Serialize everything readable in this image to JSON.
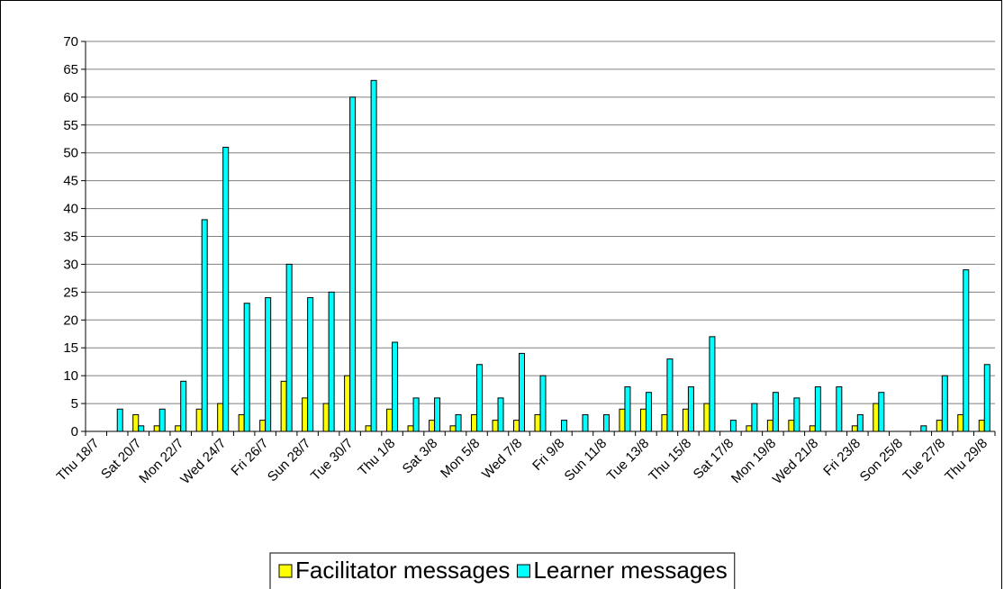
{
  "chart_data": {
    "type": "bar",
    "categories": [
      "Thu 18/7",
      null,
      "Sat 20/7",
      null,
      "Mon 22/7",
      null,
      "Wed 24/7",
      null,
      "Fri 26/7",
      null,
      "Sun 28/7",
      null,
      "Tue 30/7",
      null,
      "Thu 1/8",
      null,
      "Sat 3/8",
      null,
      "Mon 5/8",
      null,
      "Wed 7/8",
      null,
      "Fri 9/8",
      null,
      "Sun 11/8",
      null,
      "Tue 13/8",
      null,
      "Thu 15/8",
      null,
      "Sat 17/8",
      null,
      "Mon 19/8",
      null,
      "Wed 21/8",
      null,
      "Fri 23/8",
      null,
      "Son 25/8",
      null,
      "Tue 27/8",
      null,
      "Thu 29/8"
    ],
    "series": [
      {
        "name": "Facilitator messages",
        "color": "#ffff00",
        "values": [
          0,
          0,
          3,
          1,
          1,
          4,
          5,
          3,
          2,
          9,
          6,
          5,
          10,
          1,
          4,
          1,
          2,
          1,
          3,
          2,
          2,
          3,
          0,
          0,
          0,
          4,
          4,
          3,
          4,
          5,
          0,
          1,
          2,
          2,
          1,
          0,
          1,
          5,
          0,
          0,
          2,
          3,
          2
        ]
      },
      {
        "name": "Learner messages",
        "color": "#00ffff",
        "values": [
          0,
          4,
          1,
          4,
          9,
          38,
          51,
          23,
          24,
          30,
          24,
          25,
          60,
          63,
          16,
          6,
          6,
          3,
          12,
          6,
          14,
          10,
          2,
          3,
          3,
          8,
          7,
          13,
          8,
          17,
          2,
          5,
          7,
          6,
          8,
          8,
          3,
          7,
          0,
          1,
          10,
          29,
          12
        ]
      }
    ],
    "ylim": [
      0,
      70
    ],
    "yticks": [
      0,
      5,
      10,
      15,
      20,
      25,
      30,
      35,
      40,
      45,
      50,
      55,
      60,
      65,
      70
    ],
    "grid": true,
    "legend": "bottom"
  }
}
